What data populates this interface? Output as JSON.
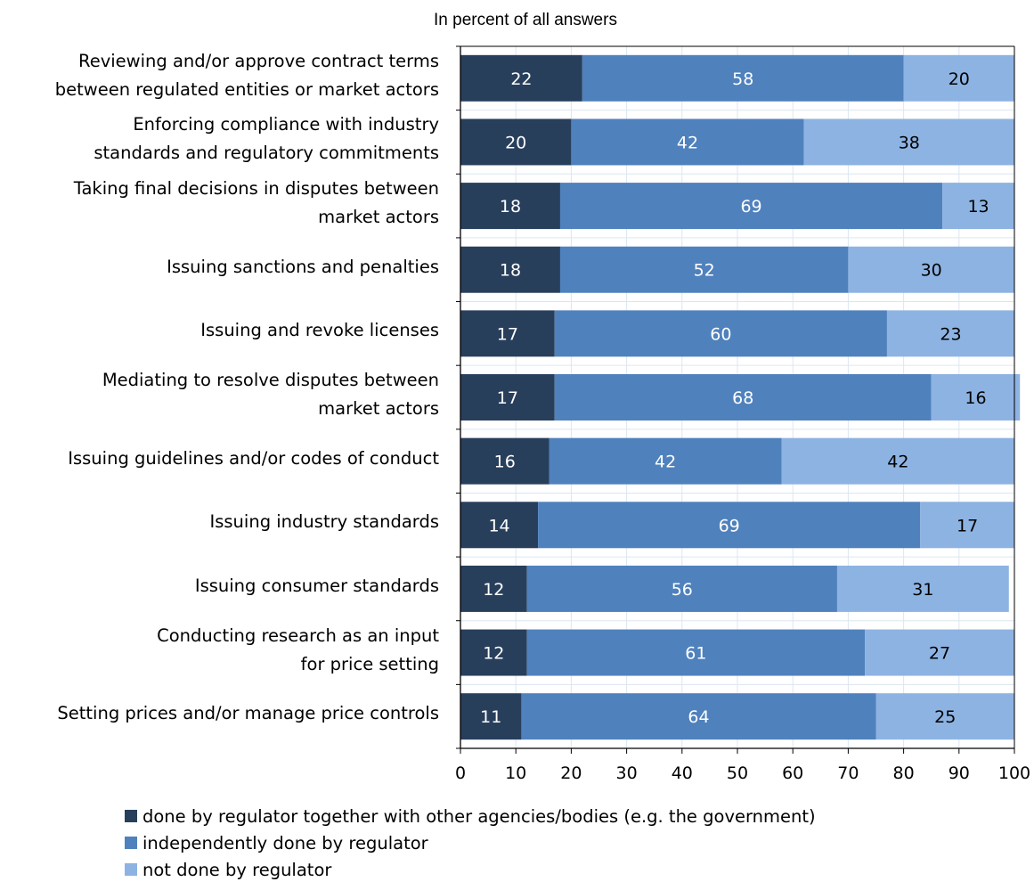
{
  "chart_data": {
    "type": "bar",
    "orientation": "horizontal",
    "stacked": true,
    "title": "In percent of all answers",
    "categories": [
      "Reviewing and/or approve contract terms\nbetween regulated entities or market actors",
      "Enforcing compliance with industry\nstandards and regulatory commitments",
      "Taking final decisions in disputes between\nmarket actors",
      "Issuing sanctions and penalties",
      "Issuing and revoke licenses",
      "Mediating to resolve disputes between\nmarket actors",
      "Issuing guidelines and/or codes of conduct",
      "Issuing industry standards",
      "Issuing consumer standards",
      "Conducting research as an input\nfor price setting",
      "Setting prices and/or manage price controls"
    ],
    "series": [
      {
        "name": "done by regulator together with other agencies/bodies (e.g. the government)",
        "color": "#283f5c",
        "values": [
          22,
          20,
          18,
          18,
          17,
          17,
          16,
          14,
          12,
          12,
          11
        ]
      },
      {
        "name": "independently done by regulator",
        "color": "#4f81bd",
        "values": [
          58,
          42,
          69,
          52,
          60,
          68,
          42,
          69,
          56,
          61,
          64
        ]
      },
      {
        "name": "not done by regulator",
        "color": "#8db3e2",
        "values": [
          20,
          38,
          13,
          30,
          23,
          16,
          42,
          17,
          31,
          27,
          25
        ]
      }
    ],
    "xlim": [
      0,
      100
    ],
    "xticks": [
      0,
      10,
      20,
      30,
      40,
      50,
      60,
      70,
      80,
      90,
      100
    ],
    "grid": true,
    "grid_color": "#dce6f1",
    "legend_position": "bottom"
  }
}
